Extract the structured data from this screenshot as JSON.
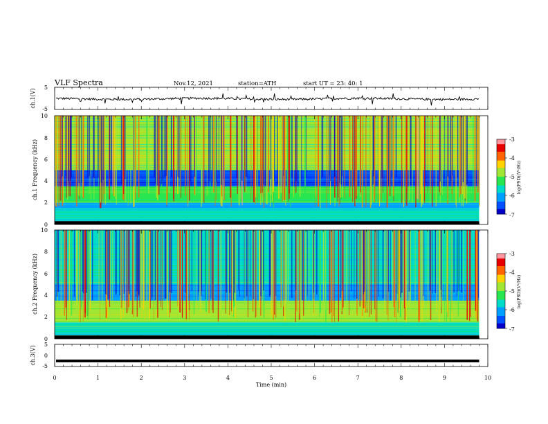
{
  "header": {
    "title": "VLF  Spectra",
    "date": "Nov.12, 2021",
    "station": "station=ATH",
    "start_time": "start  UT  =    23: 40: 1"
  },
  "colors": {
    "colormap": [
      "#000000",
      "#0000c8",
      "#0050ff",
      "#00a0ff",
      "#00dcc8",
      "#28e650",
      "#a0e632",
      "#ffd200",
      "#ff6400",
      "#e60000",
      "#ff96a0",
      "#ffffff"
    ],
    "trace": "#000000"
  },
  "chart_data": [
    {
      "type": "line",
      "name": "ch1-waveform",
      "ylabel": "ch.1(V)",
      "ylim": [
        -5,
        5
      ],
      "yticks": [
        "5",
        "-5"
      ],
      "x_range_min": [
        0,
        9.8
      ],
      "baseline_v": -0.2,
      "noise_amplitude_v": 0.5,
      "spike_amplitude_v": 1.5
    },
    {
      "type": "heatmap",
      "name": "ch1-spectrogram",
      "ylabel": "ch.1 Frequency  (kHz)",
      "ylim": [
        0,
        10
      ],
      "yticks": [
        "0",
        "2",
        "4",
        "6",
        "8",
        "10"
      ],
      "x_range_min": [
        0,
        9.8
      ],
      "bands_khz": [
        {
          "from": 0,
          "to": 0.3,
          "level": -7.0
        },
        {
          "from": 0.3,
          "to": 1.5,
          "level": -5.8
        },
        {
          "from": 1.5,
          "to": 2.0,
          "level": -6.1
        },
        {
          "from": 2.0,
          "to": 3.5,
          "level": -5.1
        },
        {
          "from": 3.5,
          "to": 5.0,
          "level": -6.7
        },
        {
          "from": 5.0,
          "to": 10.0,
          "level": -5.0
        }
      ],
      "colorbar": {
        "label": "log(PSD)(V²/Hz)",
        "ticks": [
          "-3",
          "-4",
          "-5",
          "-6",
          "-7"
        ],
        "range": [
          -7,
          -3
        ]
      }
    },
    {
      "type": "heatmap",
      "name": "ch2-spectrogram",
      "ylabel": "ch.2 Frequency  (kHz)",
      "ylim": [
        0,
        10
      ],
      "yticks": [
        "0",
        "2",
        "4",
        "6",
        "8",
        "10"
      ],
      "x_range_min": [
        0,
        9.8
      ],
      "bands_khz": [
        {
          "from": 0,
          "to": 0.3,
          "level": -7.0
        },
        {
          "from": 0.3,
          "to": 1.5,
          "level": -5.5
        },
        {
          "from": 1.5,
          "to": 3.5,
          "level": -4.9
        },
        {
          "from": 3.5,
          "to": 5.0,
          "level": -6.0
        },
        {
          "from": 5.0,
          "to": 10.0,
          "level": -5.6
        }
      ],
      "colorbar": {
        "label": "log(PSD)(V²/Hz)",
        "ticks": [
          "-3",
          "-4",
          "-5",
          "-6",
          "-7"
        ],
        "range": [
          -7,
          -3
        ]
      }
    },
    {
      "type": "line",
      "name": "ch3-waveform",
      "ylabel": "ch.3(V)",
      "ylim": [
        -5,
        5
      ],
      "yticks": [
        "5",
        "0",
        "-5"
      ],
      "x_range_min": [
        0,
        9.8
      ],
      "baseline_v": -2.5,
      "noise_amplitude_v": 0
    }
  ],
  "x_axis": {
    "label": "Time  (min)",
    "ticks": [
      "0",
      "1",
      "2",
      "3",
      "4",
      "5",
      "6",
      "7",
      "8",
      "9",
      "10"
    ],
    "range": [
      0,
      10
    ]
  }
}
